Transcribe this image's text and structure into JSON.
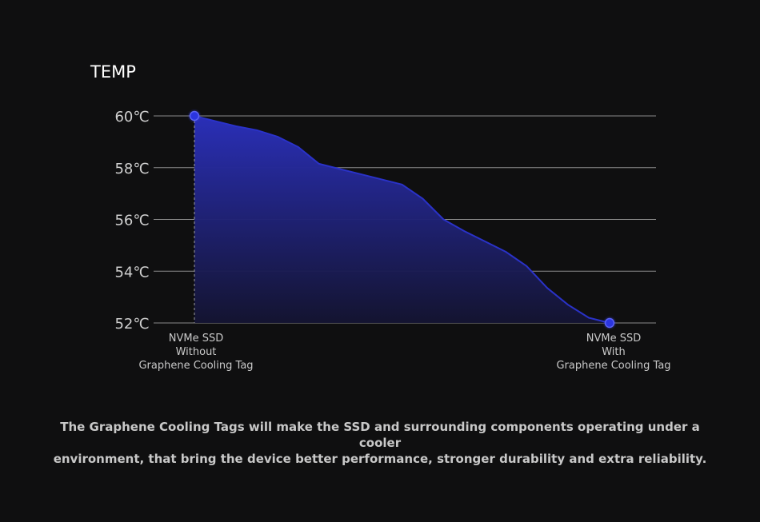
{
  "chart_data": {
    "type": "area",
    "ylabel": "TEMP",
    "ylim": [
      52,
      60
    ],
    "yticks": [
      "60℃",
      "58℃",
      "56℃",
      "54℃",
      "52℃"
    ],
    "ytick_values": [
      60,
      58,
      56,
      54,
      52
    ],
    "categories": [
      [
        "NVMe SSD",
        "Without",
        "Graphene Cooling Tag"
      ],
      [
        "NVMe SSD",
        "With",
        "Graphene Cooling Tag"
      ]
    ],
    "x": [
      0,
      0.05,
      0.1,
      0.15,
      0.2,
      0.25,
      0.3,
      0.35,
      0.4,
      0.45,
      0.5,
      0.55,
      0.6,
      0.65,
      0.7,
      0.75,
      0.8,
      0.85,
      0.9,
      0.95,
      1.0
    ],
    "values": [
      60.0,
      59.8,
      59.6,
      59.45,
      59.2,
      58.8,
      58.15,
      57.95,
      57.75,
      57.55,
      57.35,
      56.8,
      56.0,
      55.55,
      55.15,
      54.75,
      54.2,
      53.35,
      52.7,
      52.2,
      52.0
    ],
    "markers": [
      {
        "x": 0,
        "y": 60
      },
      {
        "x": 1.0,
        "y": 52
      }
    ],
    "grid": true,
    "colors": {
      "line": "#2a32c8",
      "fill_top": "#2a2fb8",
      "fill_bottom": "#141432",
      "marker": "#2b35e0",
      "gridline": "#8a8a8a",
      "dashed": "#9a9a9a"
    }
  },
  "caption": {
    "line1": "The Graphene Cooling Tags will make the SSD and surrounding components operating under a cooler",
    "line2": "environment, that bring the device better performance, stronger durability and extra reliability."
  }
}
